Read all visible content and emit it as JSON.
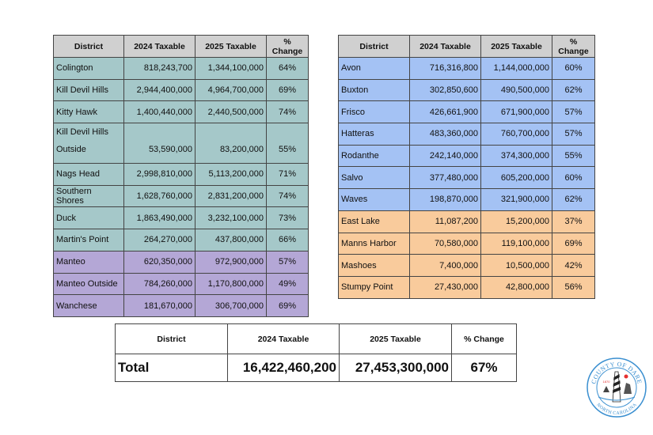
{
  "headers": [
    "District",
    "2024 Taxable",
    "2025 Taxable",
    "% Change"
  ],
  "left_table": {
    "rows": [
      {
        "district": "Colington",
        "t2024": "818,243,700",
        "t2025": "1,344,100,000",
        "change": "64%",
        "group": "teal"
      },
      {
        "district": "Kill Devil Hills",
        "t2024": "2,944,400,000",
        "t2025": "4,964,700,000",
        "change": "69%",
        "group": "teal"
      },
      {
        "district": "Kitty Hawk",
        "t2024": "1,400,440,000",
        "t2025": "2,440,500,000",
        "change": "74%",
        "group": "teal"
      },
      {
        "district": "Kill Devil Hills Outside",
        "t2024": "53,590,000",
        "t2025": "83,200,000",
        "change": "55%",
        "group": "teal"
      },
      {
        "district": "Nags Head",
        "t2024": "2,998,810,000",
        "t2025": "5,113,200,000",
        "change": "71%",
        "group": "teal"
      },
      {
        "district": "Southern Shores",
        "t2024": "1,628,760,000",
        "t2025": "2,831,200,000",
        "change": "74%",
        "group": "teal"
      },
      {
        "district": "Duck",
        "t2024": "1,863,490,000",
        "t2025": "3,232,100,000",
        "change": "73%",
        "group": "teal"
      },
      {
        "district": "Martin's Point",
        "t2024": "264,270,000",
        "t2025": "437,800,000",
        "change": "66%",
        "group": "teal"
      },
      {
        "district": "Manteo",
        "t2024": "620,350,000",
        "t2025": "972,900,000",
        "change": "57%",
        "group": "purple"
      },
      {
        "district": "Manteo Outside",
        "t2024": "784,260,000",
        "t2025": "1,170,800,000",
        "change": "49%",
        "group": "purple"
      },
      {
        "district": "Wanchese",
        "t2024": "181,670,000",
        "t2025": "306,700,000",
        "change": "69%",
        "group": "purple"
      }
    ]
  },
  "right_table": {
    "rows": [
      {
        "district": "Avon",
        "t2024": "716,316,800",
        "t2025": "1,144,000,000",
        "change": "60%",
        "group": "blue"
      },
      {
        "district": "Buxton",
        "t2024": "302,850,600",
        "t2025": "490,500,000",
        "change": "62%",
        "group": "blue"
      },
      {
        "district": "Frisco",
        "t2024": "426,661,900",
        "t2025": "671,900,000",
        "change": "57%",
        "group": "blue"
      },
      {
        "district": "Hatteras",
        "t2024": "483,360,000",
        "t2025": "760,700,000",
        "change": "57%",
        "group": "blue"
      },
      {
        "district": "Rodanthe",
        "t2024": "242,140,000",
        "t2025": "374,300,000",
        "change": "55%",
        "group": "blue"
      },
      {
        "district": "Salvo",
        "t2024": "377,480,000",
        "t2025": "605,200,000",
        "change": "60%",
        "group": "blue"
      },
      {
        "district": "Waves",
        "t2024": "198,870,000",
        "t2025": "321,900,000",
        "change": "62%",
        "group": "blue"
      },
      {
        "district": "East Lake",
        "t2024": "11,087,200",
        "t2025": "15,200,000",
        "change": "37%",
        "group": "orange"
      },
      {
        "district": "Manns Harbor",
        "t2024": "70,580,000",
        "t2025": "119,100,000",
        "change": "69%",
        "group": "orange"
      },
      {
        "district": "Mashoes",
        "t2024": "7,400,000",
        "t2025": "10,500,000",
        "change": "42%",
        "group": "orange"
      },
      {
        "district": "Stumpy Point",
        "t2024": "27,430,000",
        "t2025": "42,800,000",
        "change": "56%",
        "group": "orange"
      }
    ]
  },
  "total": {
    "label": "Total",
    "t2024": "16,422,460,200",
    "t2025": "27,453,300,000",
    "change": "67%"
  },
  "seal": {
    "top_text": "COUNTY OF DARE",
    "bottom_text": "NORTH CAROLINA",
    "year": "1870"
  },
  "colors": {
    "teal": "#a5c8c9",
    "purple": "#b4a7d6",
    "blue": "#a4c2f4",
    "orange": "#f9cb9c",
    "header": "#d0d0d0"
  }
}
